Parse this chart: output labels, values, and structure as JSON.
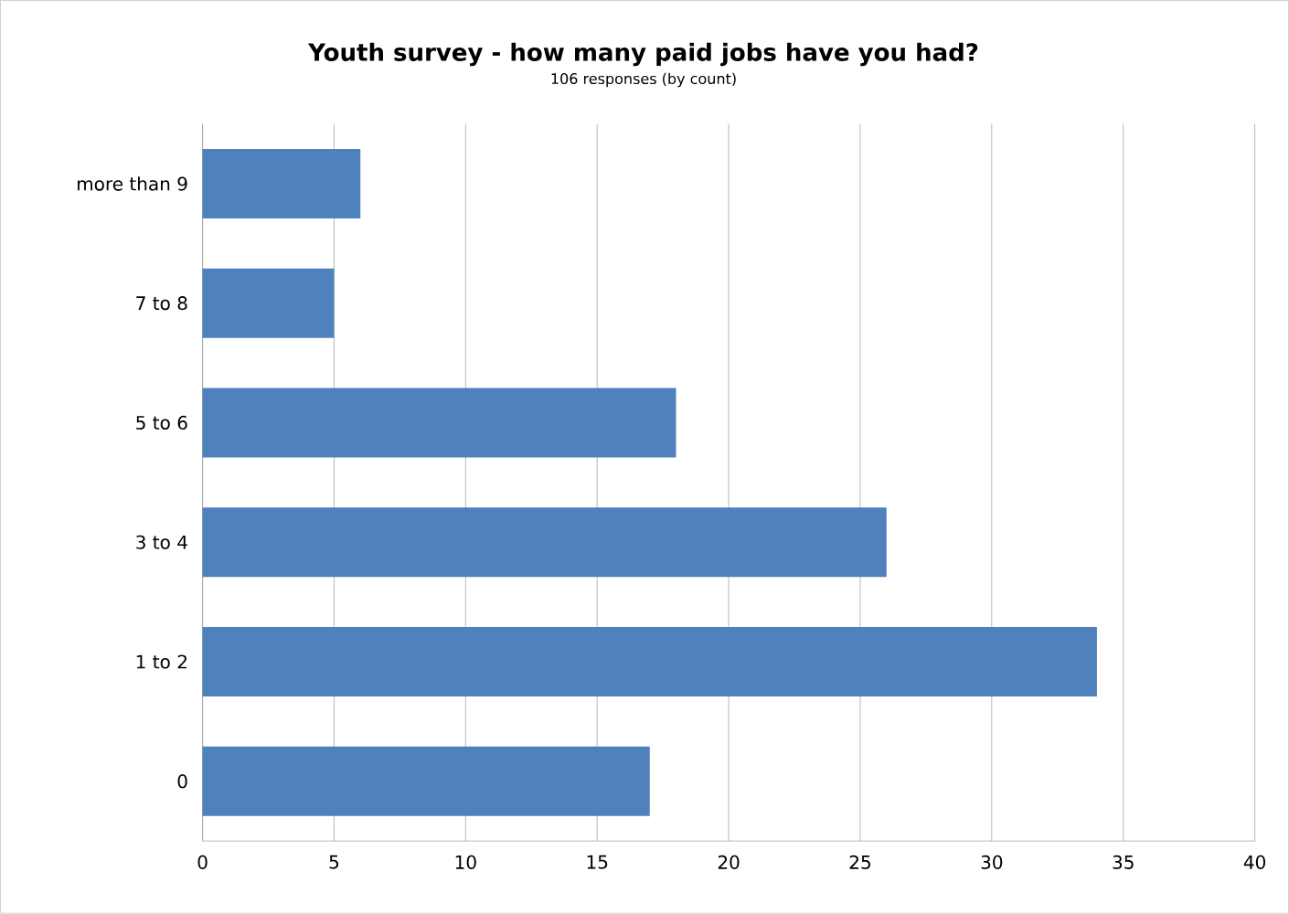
{
  "chart_data": {
    "type": "bar",
    "orientation": "horizontal",
    "title": "Youth survey - how many paid jobs have you had?",
    "subtitle": "106 responses (by count)",
    "categories": [
      "more than 9",
      "7 to 8",
      "5 to 6",
      "3 to 4",
      "1 to 2",
      "0"
    ],
    "values": [
      6,
      5,
      18,
      26,
      34,
      17
    ],
    "color": "#4f81bd",
    "xlim": [
      0,
      40
    ],
    "xticks": [
      0,
      5,
      10,
      15,
      20,
      25,
      30,
      35,
      40
    ],
    "grid": "x"
  }
}
